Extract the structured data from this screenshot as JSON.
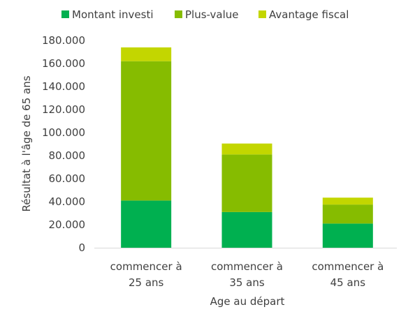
{
  "chart_data": {
    "type": "bar",
    "stacked": true,
    "categories": [
      [
        "commencer à",
        "25 ans"
      ],
      [
        "commencer à",
        "35 ans"
      ],
      [
        "commencer à",
        "45 ans"
      ]
    ],
    "series": [
      {
        "name": "Montant investi",
        "color": "#00b050",
        "values": [
          41000,
          31000,
          21000
        ]
      },
      {
        "name": "Plus-value",
        "color": "#86bc00",
        "values": [
          121000,
          50000,
          16500
        ]
      },
      {
        "name": "Avantage fiscal",
        "color": "#c3d600",
        "values": [
          12000,
          9500,
          6000
        ]
      }
    ],
    "xlabel": "Age au départ",
    "ylabel": "Résultat à l'âge de 65 ans",
    "ylim": [
      0,
      180000
    ],
    "yticks": [
      "0",
      "20.000",
      "40.000",
      "60.000",
      "80.000",
      "100.000",
      "120.000",
      "140.000",
      "160.000",
      "180.000"
    ],
    "legend_position": "top",
    "grid": false
  }
}
